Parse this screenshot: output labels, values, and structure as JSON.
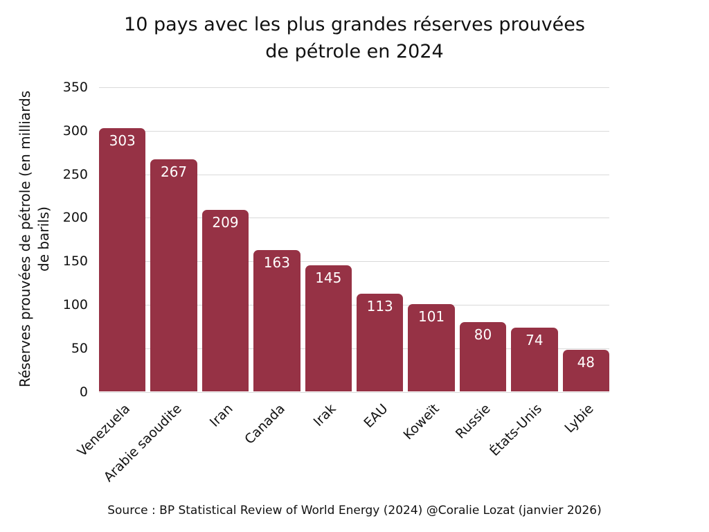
{
  "title_lines": [
    "10 pays avec les plus grandes réserves prouvées",
    "de pétrole en 2024"
  ],
  "source": "Source : BP Statistical Review of World Energy (2024) @Coralie Lozat (janvier 2026)",
  "colors": {
    "bar": "#963245",
    "gridline": "#d9d9d9",
    "text": "#111111",
    "value_label": "#ffffff"
  },
  "chart_data": {
    "type": "bar",
    "categories": [
      "Venezuela",
      "Arabie saoudite",
      "Iran",
      "Canada",
      "Irak",
      "EAU",
      "Koweït",
      "Russie",
      "États-Unis",
      "Lybie"
    ],
    "values": [
      303,
      267,
      209,
      163,
      145,
      113,
      101,
      80,
      74,
      48
    ],
    "title": "10 pays avec les plus grandes réserves prouvées de pétrole en 2024",
    "xlabel": "",
    "ylabel_lines": [
      "Réserves prouvées de pétrole (en milliards",
      "de barils)"
    ],
    "ylabel": "Réserves prouvées de pétrole (en milliards de barils)",
    "ylim": [
      0,
      350
    ],
    "ytick_step": 50,
    "grid": true,
    "legend": false
  }
}
